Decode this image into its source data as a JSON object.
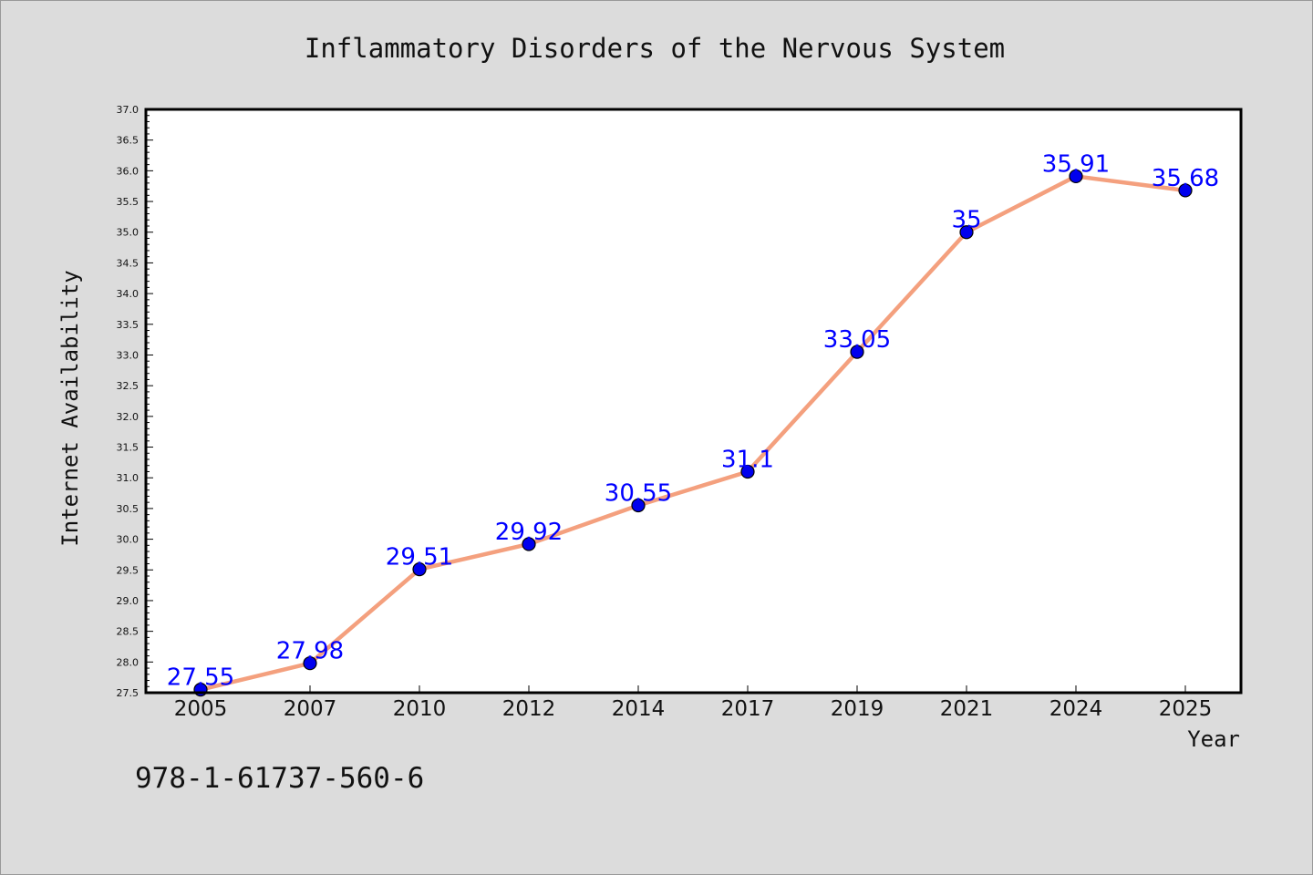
{
  "chart_data": {
    "type": "line",
    "title": "Inflammatory Disorders of the Nervous System",
    "xlabel": "Year",
    "ylabel": "Internet Availability",
    "categories": [
      "2005",
      "2007",
      "2010",
      "2012",
      "2014",
      "2017",
      "2019",
      "2021",
      "2024",
      "2025"
    ],
    "series": [
      {
        "values": [
          27.55,
          27.98,
          29.51,
          29.92,
          30.55,
          31.1,
          33.05,
          35,
          35.91,
          35.68
        ],
        "labels": [
          "27.55",
          "27.98",
          "29.51",
          "29.92",
          "30.55",
          "31.1",
          "33.05",
          "35",
          "35.91",
          "35.68"
        ]
      }
    ],
    "ylim": [
      27.5,
      37.0
    ],
    "yticks": [
      "27.5",
      "28.0",
      "28.5",
      "29.0",
      "29.5",
      "30.0",
      "30.5",
      "31.0",
      "31.5",
      "32.0",
      "32.5",
      "33.0",
      "33.5",
      "34.0",
      "34.5",
      "35.0",
      "35.5",
      "36.0",
      "36.5",
      "37.0"
    ],
    "grid": false,
    "colors": {
      "line": "#f4a07e",
      "marker": "#0000ee",
      "label": "#0000ff",
      "background": "#dcdcdc",
      "plot": "#ffffff"
    }
  },
  "footer": {
    "text": "978-1-61737-560-6"
  }
}
